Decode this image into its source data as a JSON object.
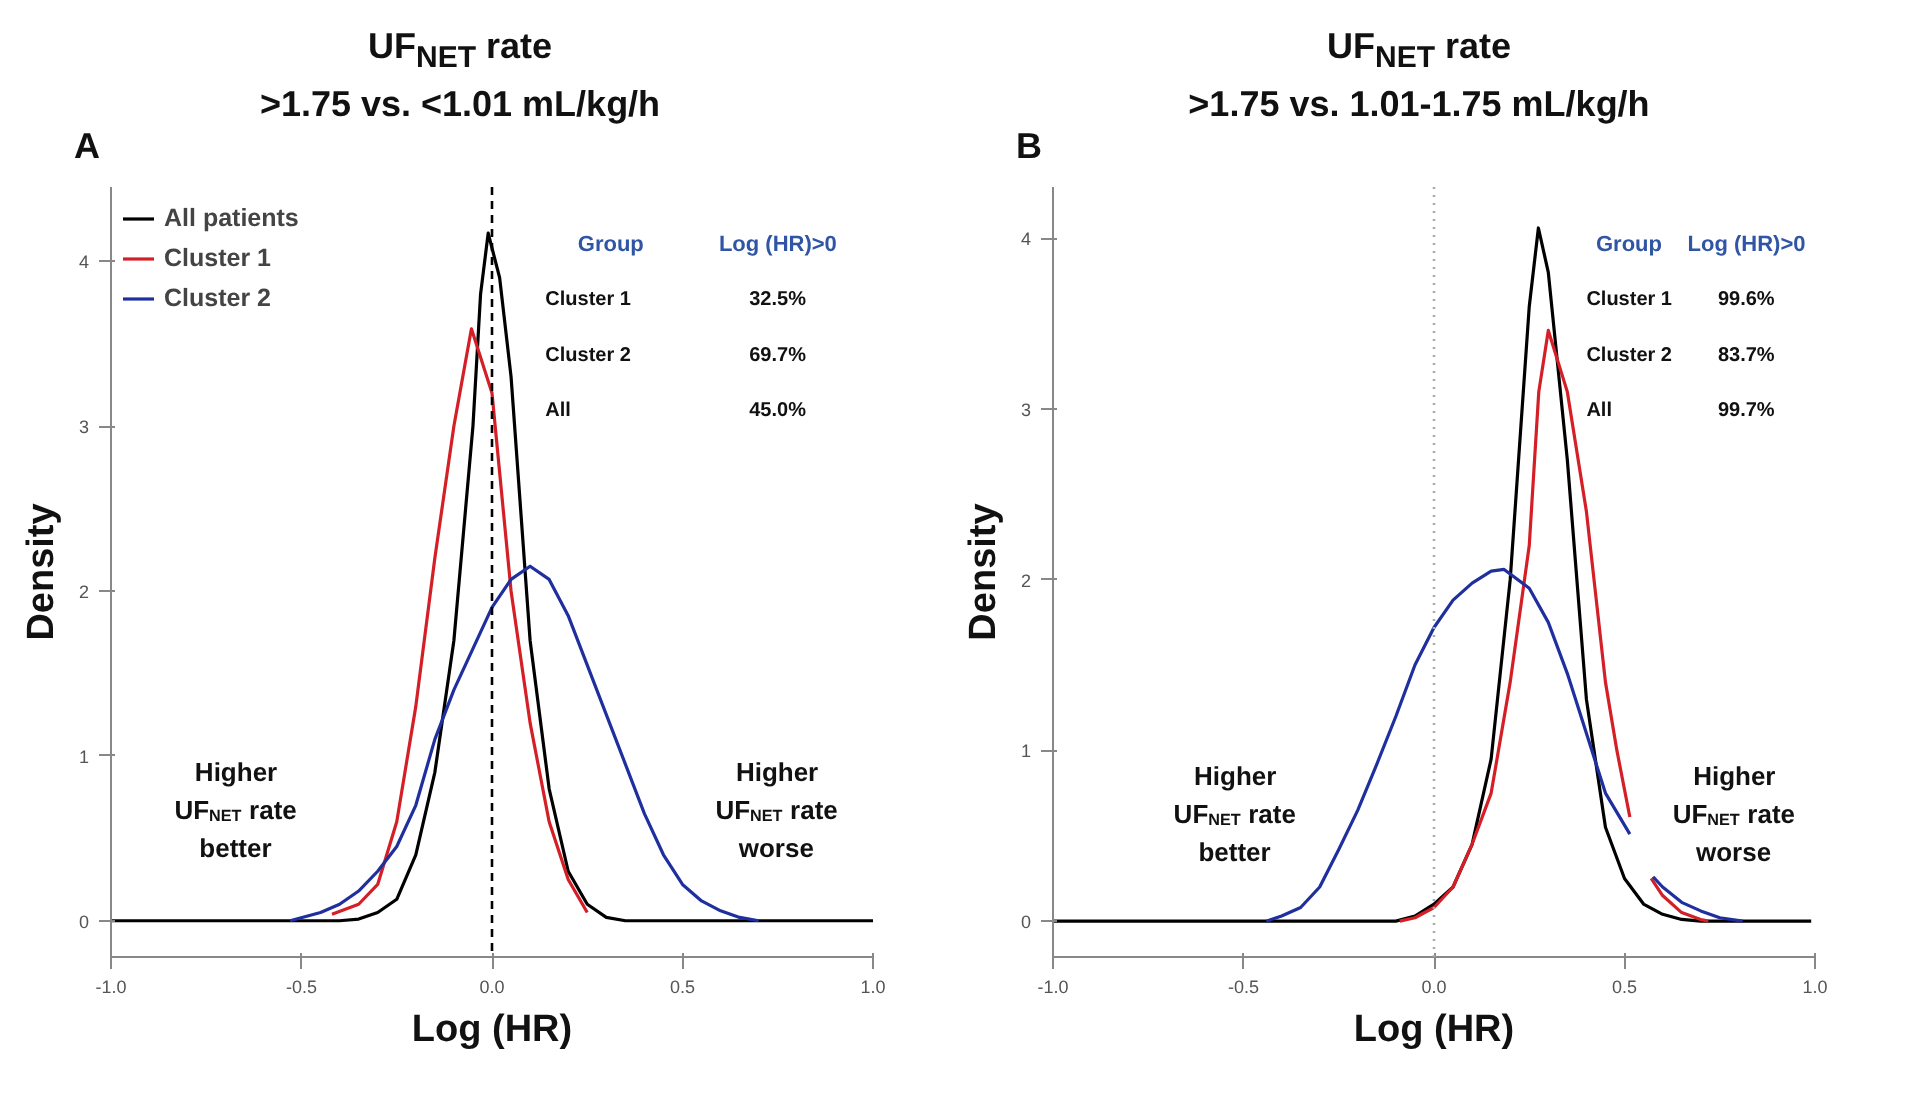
{
  "chart_data": [
    {
      "type": "line",
      "title": "UF$_{NET}$ rate\n>1.75 vs. <1.01 mL/kg/h",
      "xlabel": "Log (HR)",
      "ylabel": "Density",
      "xlim": [
        -1.0,
        1.0
      ],
      "xticks": [
        {
          "value": -1.0,
          "label": "-1.0"
        },
        {
          "value": -0.5,
          "label": "-0.5"
        },
        {
          "value": 0.0,
          "label": "0.0"
        },
        {
          "value": 0.5,
          "label": "0.5"
        },
        {
          "value": 1.0,
          "label": "1.0"
        }
      ],
      "ylim": [
        -0.22,
        4.45
      ],
      "yticks": [
        0,
        1,
        2,
        3,
        4
      ],
      "grid": false,
      "legend": "top left",
      "marker": "none",
      "line_style": "solid",
      "ref_lines": [
        {
          "axis": "x",
          "value": 0.0,
          "color": "#000000",
          "line_style": "dashed"
        }
      ],
      "annotations": [
        "A",
        "Group",
        "Log (HR)>0",
        "Cluster 1",
        "32.5%",
        "Cluster 2",
        "69.7%",
        "All",
        "45.0%",
        "Higher\nUF$_{NET}$ rate\nbetter",
        "Higher\nUF$_{NET}$ rate\nworse"
      ],
      "series": [
        {
          "name": "All patients",
          "color": "#000000",
          "x": [
            -1.0,
            -0.4,
            -0.35,
            -0.3,
            -0.25,
            -0.2,
            -0.15,
            -0.1,
            -0.05,
            -0.03,
            -0.01,
            0.02,
            0.05,
            0.1,
            0.15,
            0.2,
            0.25,
            0.3,
            0.35,
            1.0
          ],
          "values": [
            0,
            0,
            0.01,
            0.05,
            0.13,
            0.4,
            0.9,
            1.7,
            3.0,
            3.8,
            4.17,
            3.9,
            3.3,
            1.7,
            0.8,
            0.3,
            0.1,
            0.02,
            0,
            0
          ]
        },
        {
          "name": "Cluster 1",
          "color": "#d41f26",
          "x": [
            -0.42,
            -0.35,
            -0.3,
            -0.25,
            -0.2,
            -0.15,
            -0.1,
            -0.054,
            0.0,
            0.05,
            0.1,
            0.15,
            0.2,
            0.25
          ],
          "values": [
            0.04,
            0.1,
            0.22,
            0.6,
            1.3,
            2.2,
            3.0,
            3.59,
            3.2,
            2.0,
            1.2,
            0.6,
            0.25,
            0.05
          ]
        },
        {
          "name": "Cluster 2",
          "color": "#1f2f9e",
          "x": [
            -0.53,
            -0.45,
            -0.4,
            -0.35,
            -0.3,
            -0.25,
            -0.2,
            -0.15,
            -0.1,
            -0.05,
            0.0,
            0.05,
            0.1,
            0.15,
            0.2,
            0.25,
            0.3,
            0.35,
            0.4,
            0.45,
            0.5,
            0.55,
            0.6,
            0.65,
            0.7
          ],
          "values": [
            0,
            0.05,
            0.1,
            0.18,
            0.3,
            0.45,
            0.7,
            1.1,
            1.4,
            1.65,
            1.9,
            2.07,
            2.15,
            2.07,
            1.85,
            1.55,
            1.25,
            0.95,
            0.65,
            0.4,
            0.22,
            0.12,
            0.06,
            0.02,
            0
          ]
        }
      ]
    },
    {
      "type": "line",
      "title": "UF$_{NET}$ rate\n>1.75 vs. 1.01-1.75 mL/kg/h",
      "xlabel": "Log (HR)",
      "ylabel": "Density",
      "xlim": [
        -1.0,
        1.0
      ],
      "xticks": [
        {
          "value": -1.0,
          "label": "-1.0"
        },
        {
          "value": -0.5,
          "label": "-0.5"
        },
        {
          "value": 0.0,
          "label": "0.0"
        },
        {
          "value": 0.5,
          "label": "0.5"
        },
        {
          "value": 1.0,
          "label": "1.0"
        }
      ],
      "ylim": [
        -0.21,
        4.3
      ],
      "yticks": [
        0,
        1,
        2,
        3,
        4
      ],
      "grid": false,
      "marker": "none",
      "line_style": "solid",
      "ref_lines": [
        {
          "axis": "x",
          "value": 0.0,
          "color": "#aaaaaa",
          "line_style": "dotted"
        }
      ],
      "annotations": [
        "B",
        "Group",
        "Log (HR)>0",
        "Cluster 1",
        "99.6%",
        "Cluster 2",
        "83.7%",
        "All",
        "99.7%",
        "Higher\nUF$_{NET}$ rate\nbetter",
        "Higher\nUF$_{NET}$ rate\nworse"
      ],
      "series": [
        {
          "color": "#000000",
          "x": [
            -1.0,
            -0.1,
            -0.05,
            0.0,
            0.05,
            0.1,
            0.15,
            0.2,
            0.25,
            0.274,
            0.3,
            0.35,
            0.4,
            0.45,
            0.5,
            0.55,
            0.6,
            0.65,
            0.7,
            0.99
          ],
          "values": [
            0,
            0,
            0.03,
            0.1,
            0.2,
            0.45,
            0.95,
            2.0,
            3.6,
            4.06,
            3.8,
            2.7,
            1.3,
            0.55,
            0.25,
            0.1,
            0.04,
            0.01,
            0,
            0
          ]
        },
        {
          "color": "#d41f26",
          "x": [
            -0.09,
            -0.05,
            0.0,
            0.05,
            0.1,
            0.15,
            0.2,
            0.25,
            0.275,
            0.3,
            0.35,
            0.4,
            0.45,
            0.48,
            0.514,
            0.54,
            0.57,
            0.6,
            0.65,
            0.7,
            0.72
          ],
          "values": [
            0,
            0.02,
            0.08,
            0.2,
            0.45,
            0.75,
            1.4,
            2.2,
            3.1,
            3.46,
            3.1,
            2.4,
            1.4,
            1.0,
            0.61,
            null,
            0.25,
            0.15,
            0.05,
            0.01,
            0
          ]
        },
        {
          "color": "#1f2f9e",
          "x": [
            -0.44,
            -0.4,
            -0.35,
            -0.3,
            -0.25,
            -0.2,
            -0.15,
            -0.1,
            -0.05,
            0.0,
            0.05,
            0.1,
            0.15,
            0.184,
            0.25,
            0.3,
            0.35,
            0.4,
            0.45,
            0.514,
            0.545,
            0.575,
            0.6,
            0.65,
            0.7,
            0.75,
            0.81
          ],
          "values": [
            0,
            0.03,
            0.08,
            0.2,
            0.42,
            0.65,
            0.92,
            1.2,
            1.5,
            1.72,
            1.88,
            1.98,
            2.05,
            2.06,
            1.95,
            1.75,
            1.45,
            1.1,
            0.75,
            0.51,
            null,
            0.26,
            0.2,
            0.11,
            0.06,
            0.02,
            0
          ]
        }
      ]
    }
  ]
}
